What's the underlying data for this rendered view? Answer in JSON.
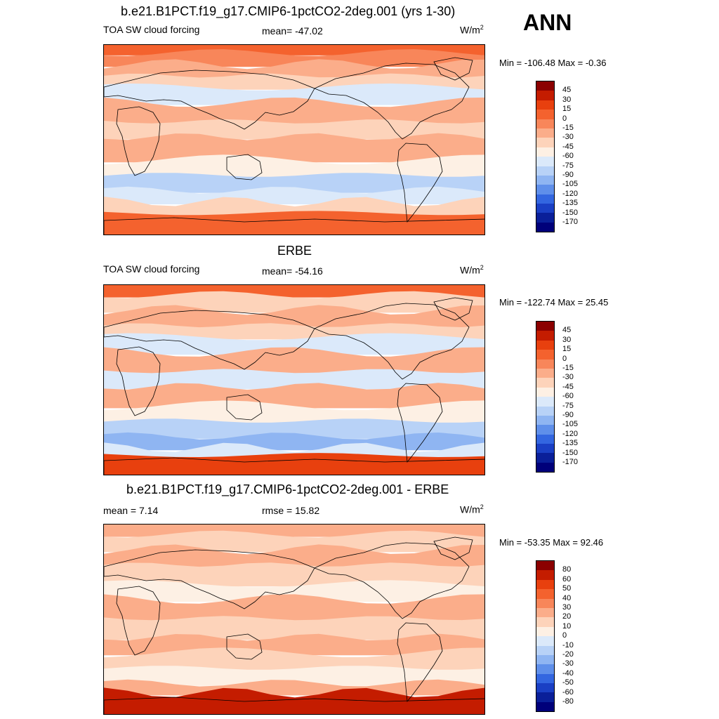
{
  "ann_label": "ANN",
  "panels": [
    {
      "title": "b.e21.B1PCT.f19_g17.CMIP6-1pctCO2-2deg.001 (yrs 1-30)",
      "left_label": "TOA SW cloud forcing",
      "center_label": "mean= -47.02",
      "units": "W/m",
      "units_sup": "2",
      "minmax": "Min = -106.48 Max =  -0.36",
      "colorbar_labels": [
        "45",
        "30",
        "15",
        "0",
        "-15",
        "-30",
        "-45",
        "-60",
        "-75",
        "-90",
        "-105",
        "-120",
        "-135",
        "-150",
        "-170"
      ],
      "colorbar_colors": [
        "#8b0000",
        "#c41c00",
        "#e8400e",
        "#f4622e",
        "#f8865a",
        "#fbad8a",
        "#fdd3ba",
        "#fdf0e4",
        "#dbe9fa",
        "#b8d2f7",
        "#8fb5f2",
        "#5f8fea",
        "#3366e0",
        "#1a3fc4",
        "#0a1f99",
        "#00007a"
      ],
      "bands": [
        {
          "color": "#f4622e",
          "w": 4
        },
        {
          "color": "#f8865a",
          "w": 6
        },
        {
          "color": "#fbad8a",
          "w": 6
        },
        {
          "color": "#fdd3ba",
          "w": 6
        },
        {
          "color": "#dbe9fa",
          "w": 8
        },
        {
          "color": "#fbad8a",
          "w": 10
        },
        {
          "color": "#fdd3ba",
          "w": 8
        },
        {
          "color": "#fbad8a",
          "w": 12
        },
        {
          "color": "#fdf0e4",
          "w": 8
        },
        {
          "color": "#b8d2f7",
          "w": 8
        },
        {
          "color": "#dbe9fa",
          "w": 6
        },
        {
          "color": "#fdd3ba",
          "w": 6
        },
        {
          "color": "#f4622e",
          "w": 12
        }
      ]
    },
    {
      "title": "ERBE",
      "left_label": "TOA SW cloud forcing",
      "center_label": "mean= -54.16",
      "units": "W/m",
      "units_sup": "2",
      "minmax": "Min = -122.74 Max =  25.45",
      "colorbar_labels": [
        "45",
        "30",
        "15",
        "0",
        "-15",
        "-30",
        "-45",
        "-60",
        "-75",
        "-90",
        "-105",
        "-120",
        "-135",
        "-150",
        "-170"
      ],
      "colorbar_colors": [
        "#8b0000",
        "#c41c00",
        "#e8400e",
        "#f4622e",
        "#f8865a",
        "#fbad8a",
        "#fdd3ba",
        "#fdf0e4",
        "#dbe9fa",
        "#b8d2f7",
        "#8fb5f2",
        "#5f8fea",
        "#3366e0",
        "#1a3fc4",
        "#0a1f99",
        "#00007a"
      ],
      "bands": [
        {
          "color": "#f4622e",
          "w": 5
        },
        {
          "color": "#fdd3ba",
          "w": 8
        },
        {
          "color": "#fbad8a",
          "w": 8
        },
        {
          "color": "#fdd3ba",
          "w": 6
        },
        {
          "color": "#dbe9fa",
          "w": 8
        },
        {
          "color": "#fbad8a",
          "w": 10
        },
        {
          "color": "#dbe9fa",
          "w": 8
        },
        {
          "color": "#fbad8a",
          "w": 10
        },
        {
          "color": "#fdf0e4",
          "w": 8
        },
        {
          "color": "#b8d2f7",
          "w": 8
        },
        {
          "color": "#8fb5f2",
          "w": 6
        },
        {
          "color": "#dbe9fa",
          "w": 4
        },
        {
          "color": "#e8400e",
          "w": 11
        }
      ]
    },
    {
      "title": "b.e21.B1PCT.f19_g17.CMIP6-1pctCO2-2deg.001 - ERBE",
      "left_label": "mean =   7.14",
      "center_label": "rmse =  15.82",
      "units": "W/m",
      "units_sup": "2",
      "minmax": "Min = -53.35 Max =  92.46",
      "colorbar_labels": [
        "80",
        "60",
        "50",
        "40",
        "30",
        "20",
        "10",
        "0",
        "-10",
        "-20",
        "-30",
        "-40",
        "-50",
        "-60",
        "-80"
      ],
      "colorbar_colors": [
        "#8b0000",
        "#c41c00",
        "#e8400e",
        "#f4622e",
        "#f8865a",
        "#fbad8a",
        "#fdd3ba",
        "#fdf0e4",
        "#dbe9fa",
        "#b8d2f7",
        "#8fb5f2",
        "#5f8fea",
        "#3366e0",
        "#1a3fc4",
        "#0a1f99",
        "#00007a"
      ],
      "bands": [
        {
          "color": "#fbad8a",
          "w": 5
        },
        {
          "color": "#fdd3ba",
          "w": 8
        },
        {
          "color": "#fbad8a",
          "w": 8
        },
        {
          "color": "#fdd3ba",
          "w": 10
        },
        {
          "color": "#fdf0e4",
          "w": 8
        },
        {
          "color": "#fbad8a",
          "w": 10
        },
        {
          "color": "#fdd3ba",
          "w": 10
        },
        {
          "color": "#fbad8a",
          "w": 8
        },
        {
          "color": "#fdd3ba",
          "w": 8
        },
        {
          "color": "#fdf0e4",
          "w": 8
        },
        {
          "color": "#fbad8a",
          "w": 5
        },
        {
          "color": "#c41c00",
          "w": 12
        }
      ]
    }
  ]
}
